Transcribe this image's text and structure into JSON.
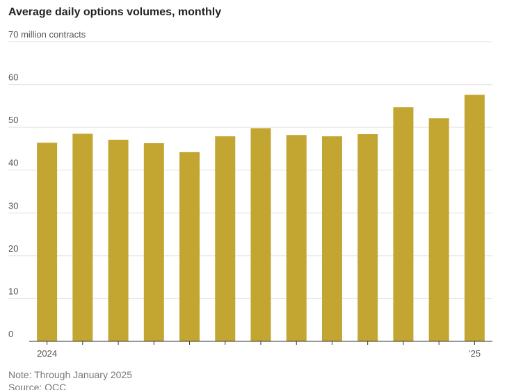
{
  "chart_data": {
    "type": "bar",
    "title": "Average daily options volumes, monthly",
    "categories": [
      "2024",
      null,
      null,
      null,
      null,
      null,
      null,
      null,
      null,
      null,
      null,
      null,
      "’25"
    ],
    "values": [
      46.4,
      48.5,
      47.1,
      46.3,
      44.2,
      47.9,
      49.8,
      48.2,
      47.9,
      48.4,
      54.7,
      52.1,
      57.6
    ],
    "color": "#c3a632",
    "ylim": [
      0,
      70
    ],
    "yticks": [
      0,
      10,
      20,
      30,
      40,
      50,
      60,
      {
        "value": 70,
        "label": "70 million contracts"
      }
    ],
    "grid": true,
    "note": "Note: Through January 2025",
    "source": "Source: OCC"
  }
}
